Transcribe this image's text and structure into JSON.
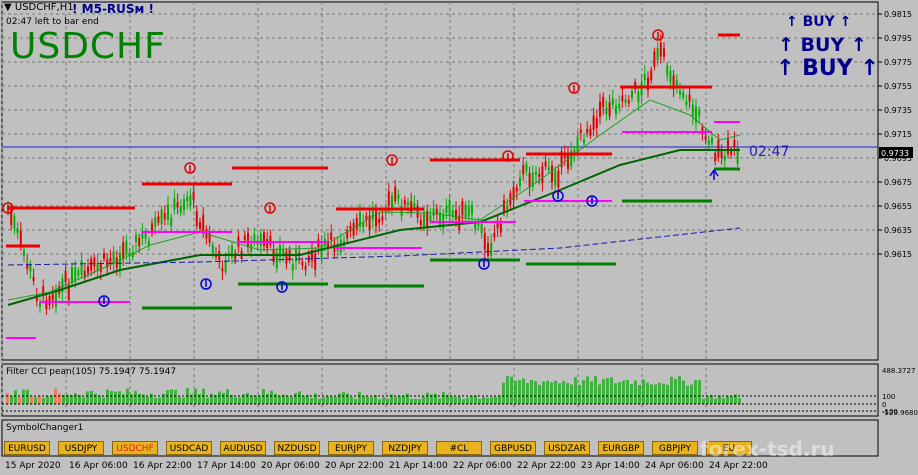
{
  "chart_title": "USDCHF,H1",
  "header_badge": "! M5-RUSм !",
  "time_left": "02:47 left to bar end",
  "symbol_big": "USDCHF",
  "timer_label": "02:47",
  "buy_signals": [
    "BUY",
    "BUY",
    "BUY"
  ],
  "current_price": "0.9733",
  "price_axis": [
    "0.9815",
    "0.9795",
    "0.9775",
    "0.9755",
    "0.9735",
    "0.9715",
    "0.9695",
    "0.9675",
    "0.9655",
    "0.9635",
    "0.9615"
  ],
  "indicator": {
    "label": "Filter CCI pean(105)  75.1947 75.1947",
    "axis": [
      "488.3727",
      "100",
      "0",
      "-100",
      "-529.9680"
    ]
  },
  "symbol_changer": {
    "label": "SymbolChanger1",
    "buttons": [
      "EURUSD",
      "USDJPY",
      "USDCHF",
      "USDCAD",
      "AUDUSD",
      "NZDUSD",
      "EURJPY",
      "NZDJPY",
      "#CL",
      "GBPUSD",
      "USDZAR",
      "EURGBP",
      "GBPJPY",
      "EU"
    ],
    "active": "USDCHF"
  },
  "time_axis": [
    "15 Apr 2020",
    "16 Apr 06:00",
    "16 Apr 22:00",
    "17 Apr 14:00",
    "20 Apr 06:00",
    "20 Apr 22:00",
    "21 Apr 14:00",
    "22 Apr 06:00",
    "22 Apr 22:00",
    "23 Apr 14:00",
    "24 Apr 06:00",
    "24 Apr 22:00"
  ],
  "watermark": "forex-tsd.ru",
  "colors": {
    "background": "#c0c0c0",
    "up_candle": "#00b000",
    "down_candle": "#e00000",
    "resistance": "#ee0000",
    "support": "#008000",
    "target": "#ff00ff",
    "signal": "#00008b"
  }
}
